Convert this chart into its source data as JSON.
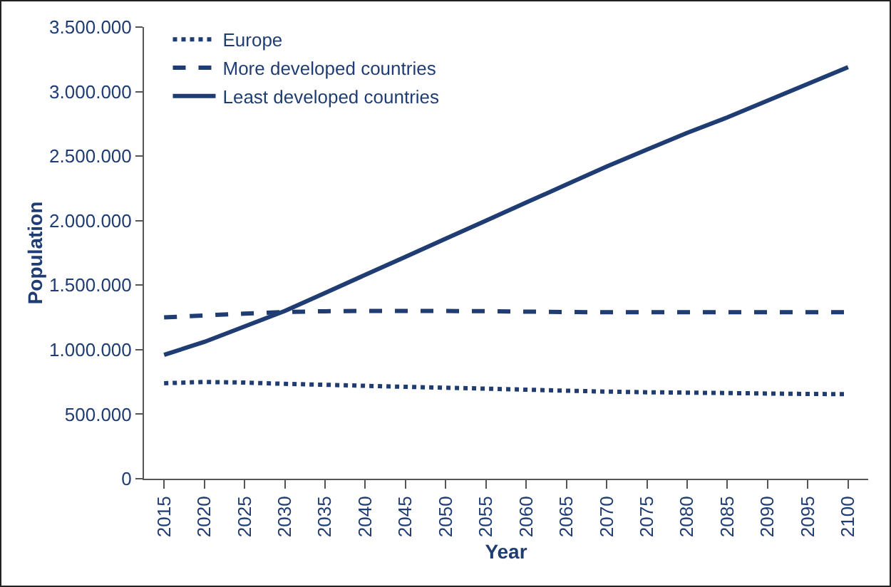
{
  "chart_data": {
    "type": "line",
    "xlabel": "Year",
    "ylabel": "Population",
    "categories": [
      "2015",
      "2020",
      "2025",
      "2030",
      "2035",
      "2040",
      "2045",
      "2050",
      "2055",
      "2060",
      "2065",
      "2070",
      "2075",
      "2080",
      "2085",
      "2090",
      "2095",
      "2100"
    ],
    "series": [
      {
        "name": "Europe",
        "color": "#1f3c73",
        "line_style": "dotted",
        "values": [
          740000,
          750000,
          745000,
          735000,
          728000,
          720000,
          712000,
          705000,
          698000,
          690000,
          682000,
          675000,
          670000,
          667000,
          664000,
          660000,
          657000,
          655000
        ]
      },
      {
        "name": "More developed countries",
        "color": "#1f3c73",
        "line_style": "dashed",
        "values": [
          1250000,
          1265000,
          1280000,
          1292000,
          1298000,
          1300000,
          1300000,
          1300000,
          1298000,
          1295000,
          1292000,
          1290000,
          1290000,
          1290000,
          1290000,
          1290000,
          1290000,
          1290000
        ]
      },
      {
        "name": "Least developed countries",
        "color": "#1f3c73",
        "line_style": "solid",
        "values": [
          960000,
          1060000,
          1180000,
          1300000,
          1440000,
          1580000,
          1720000,
          1860000,
          2000000,
          2140000,
          2280000,
          2420000,
          2550000,
          2680000,
          2800000,
          2930000,
          3060000,
          3190000
        ]
      }
    ],
    "ylim": [
      0,
      3500000
    ],
    "yticks": [
      0,
      {
        "value": 500000,
        "label": "500.000"
      },
      {
        "value": 1000000,
        "label": "1.000.000"
      },
      {
        "value": 1500000,
        "label": "1.500.000"
      },
      {
        "value": 2000000,
        "label": "2.000.000"
      },
      {
        "value": 2500000,
        "label": "2.500.000"
      },
      {
        "value": 3000000,
        "label": "3.000.000"
      },
      {
        "value": 3500000,
        "label": "3.500.000"
      }
    ],
    "grid": false,
    "legend": "top left",
    "marker": "none"
  }
}
